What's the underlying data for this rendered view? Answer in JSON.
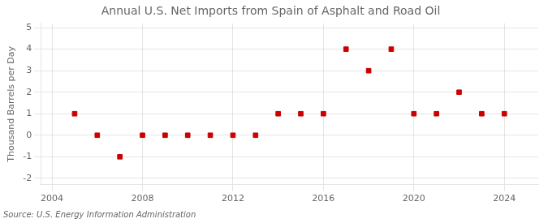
{
  "chart_data": {
    "type": "scatter",
    "title": "Annual U.S. Net Imports from Spain of Asphalt and Road Oil",
    "ylabel": "Thousand Barrels per Day",
    "annotation": "Source: U.S. Energy Information Administration",
    "x": [
      2005,
      2006,
      2007,
      2008,
      2009,
      2010,
      2011,
      2012,
      2013,
      2014,
      2015,
      2016,
      2017,
      2018,
      2019,
      2020,
      2021,
      2022,
      2023,
      2024
    ],
    "values": [
      1,
      0,
      -1,
      0,
      0,
      0,
      0,
      0,
      0,
      1,
      1,
      1,
      4,
      3,
      4,
      1,
      1,
      2,
      1,
      1
    ],
    "color": "#cc0000",
    "marker": "square",
    "xlim": [
      2003.5,
      2025.5
    ],
    "xticks": [
      2004,
      2008,
      2012,
      2016,
      2020,
      2024
    ],
    "ylim": [
      -2.3,
      5.2
    ],
    "yticks": [
      -2,
      -1,
      0,
      1,
      2,
      3,
      4,
      5
    ],
    "grid": true
  }
}
